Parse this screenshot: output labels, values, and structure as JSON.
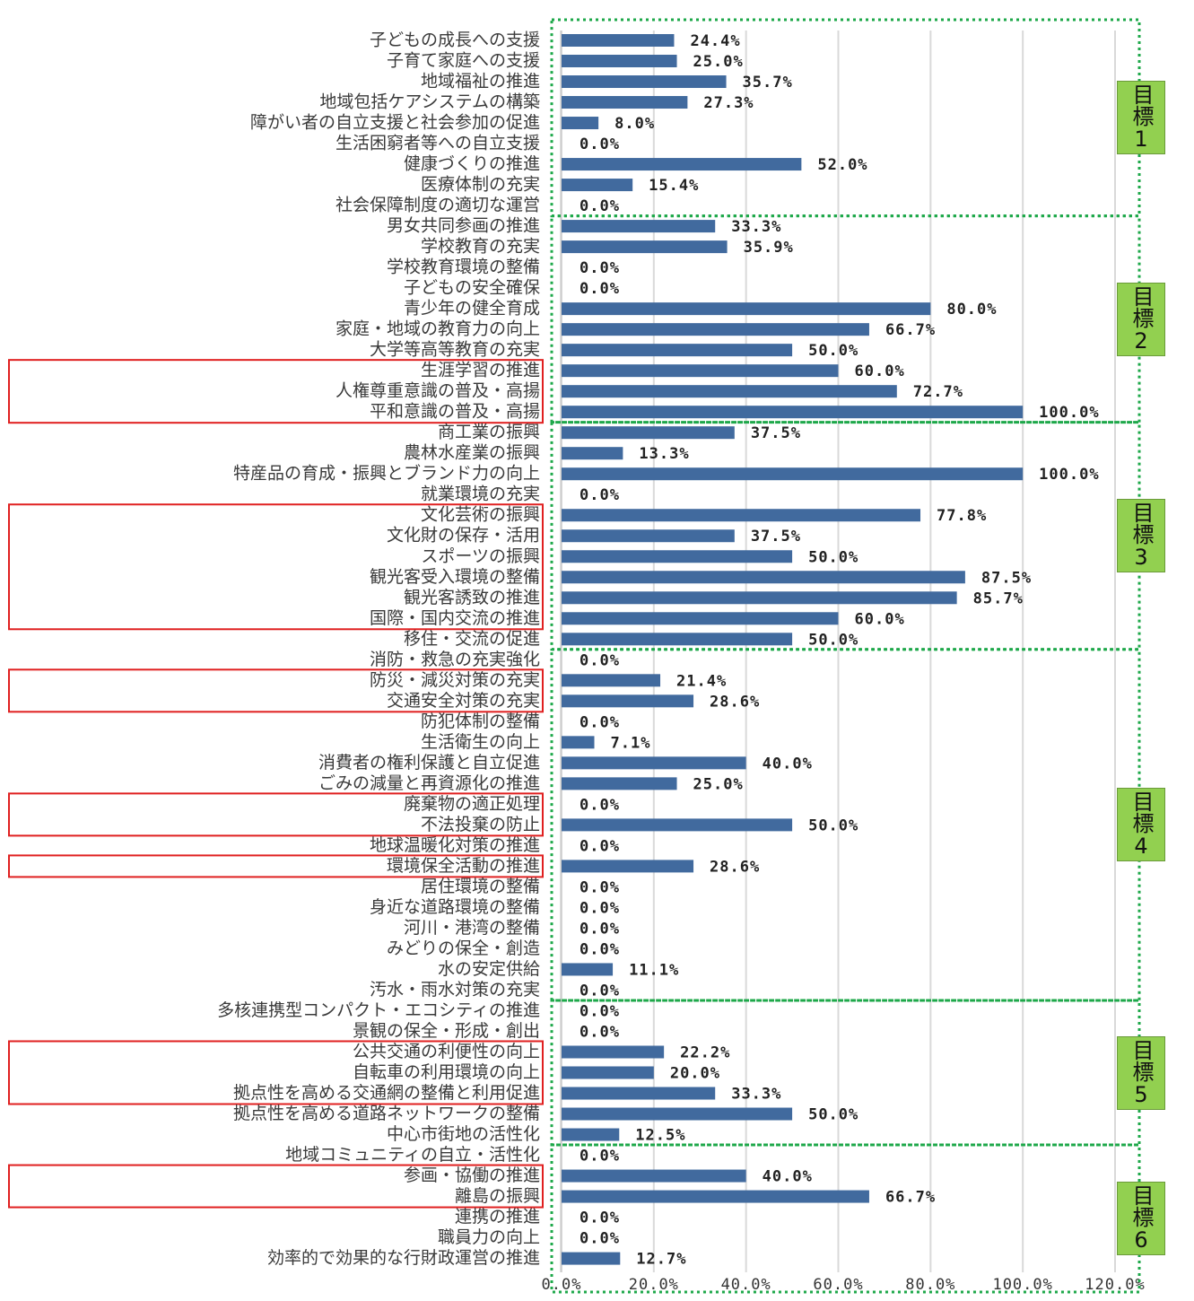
{
  "chart_data": {
    "type": "barh",
    "categories": [
      "子どもの成長への支援",
      "子育て家庭への支援",
      "地域福祉の推進",
      "地域包括ケアシステムの構築",
      "障がい者の自立支援と社会参加の促進",
      "生活困窮者等への自立支援",
      "健康づくりの推進",
      "医療体制の充実",
      "社会保障制度の適切な運営",
      "男女共同参画の推進",
      "学校教育の充実",
      "学校教育環境の整備",
      "子どもの安全確保",
      "青少年の健全育成",
      "家庭・地域の教育力の向上",
      "大学等高等教育の充実",
      "生涯学習の推進",
      "人権尊重意識の普及・高揚",
      "平和意識の普及・高揚",
      "商工業の振興",
      "農林水産業の振興",
      "特産品の育成・振興とブランド力の向上",
      "就業環境の充実",
      "文化芸術の振興",
      "文化財の保存・活用",
      "スポーツの振興",
      "観光客受入環境の整備",
      "観光客誘致の推進",
      "国際・国内交流の推進",
      "移住・交流の促進",
      "消防・救急の充実強化",
      "防災・減災対策の充実",
      "交通安全対策の充実",
      "防犯体制の整備",
      "生活衛生の向上",
      "消費者の権利保護と自立促進",
      "ごみの減量と再資源化の推進",
      "廃棄物の適正処理",
      "不法投棄の防止",
      "地球温暖化対策の推進",
      "環境保全活動の推進",
      "居住環境の整備",
      "身近な道路環境の整備",
      "河川・港湾の整備",
      "みどりの保全・創造",
      "水の安定供給",
      "汚水・雨水対策の充実",
      "多核連携型コンパクト・エコシティの推進",
      "景観の保全・形成・創出",
      "公共交通の利便性の向上",
      "自転車の利用環境の向上",
      "拠点性を高める交通網の整備と利用促進",
      "拠点性を高める道路ネットワークの整備",
      "中心市街地の活性化",
      "地域コミュニティの自立・活性化",
      "参画・協働の推進",
      "離島の振興",
      "連携の推進",
      "職員力の向上",
      "効率的で効果的な行財政運営の推進"
    ],
    "values": [
      24.4,
      25.0,
      35.7,
      27.3,
      8.0,
      0.0,
      52.0,
      15.4,
      0.0,
      33.3,
      35.9,
      0.0,
      0.0,
      80.0,
      66.7,
      50.0,
      60.0,
      72.7,
      100.0,
      37.5,
      13.3,
      100.0,
      0.0,
      77.8,
      37.5,
      50.0,
      87.5,
      85.7,
      60.0,
      50.0,
      0.0,
      21.4,
      28.6,
      0.0,
      7.1,
      40.0,
      25.0,
      0.0,
      50.0,
      0.0,
      28.6,
      0.0,
      0.0,
      0.0,
      0.0,
      11.1,
      0.0,
      0.0,
      0.0,
      22.2,
      20.0,
      33.3,
      50.0,
      12.5,
      0.0,
      40.0,
      66.7,
      0.0,
      0.0,
      12.7
    ],
    "value_labels": [
      "24.4%",
      "25.0%",
      "35.7%",
      "27.3%",
      "8.0%",
      "0.0%",
      "52.0%",
      "15.4%",
      "0.0%",
      "33.3%",
      "35.9%",
      "0.0%",
      "0.0%",
      "80.0%",
      "66.7%",
      "50.0%",
      "60.0%",
      "72.7%",
      "100.0%",
      "37.5%",
      "13.3%",
      "100.0%",
      "0.0%",
      "77.8%",
      "37.5%",
      "50.0%",
      "87.5%",
      "85.7%",
      "60.0%",
      "50.0%",
      "0.0%",
      "21.4%",
      "28.6%",
      "0.0%",
      "7.1%",
      "40.0%",
      "25.0%",
      "0.0%",
      "50.0%",
      "0.0%",
      "28.6%",
      "0.0%",
      "0.0%",
      "0.0%",
      "0.0%",
      "11.1%",
      "0.0%",
      "0.0%",
      "0.0%",
      "22.2%",
      "20.0%",
      "33.3%",
      "50.0%",
      "12.5%",
      "0.0%",
      "40.0%",
      "66.7%",
      "0.0%",
      "0.0%",
      "12.7%"
    ],
    "color": "#416a9e",
    "xlim": [
      0,
      120
    ],
    "xticks": [
      {
        "value": 0,
        "label": "0.0%"
      },
      {
        "value": 20,
        "label": "20.0%"
      },
      {
        "value": 40,
        "label": "40.0%"
      },
      {
        "value": 60,
        "label": "60.0%"
      },
      {
        "value": 80,
        "label": "80.0%"
      },
      {
        "value": 100,
        "label": "100.0%"
      },
      {
        "value": 120,
        "label": "120.0%"
      }
    ],
    "grid": true,
    "goals": [
      "目標1",
      "目標2",
      "目標3",
      "目標4",
      "目標5",
      "目標6"
    ]
  }
}
